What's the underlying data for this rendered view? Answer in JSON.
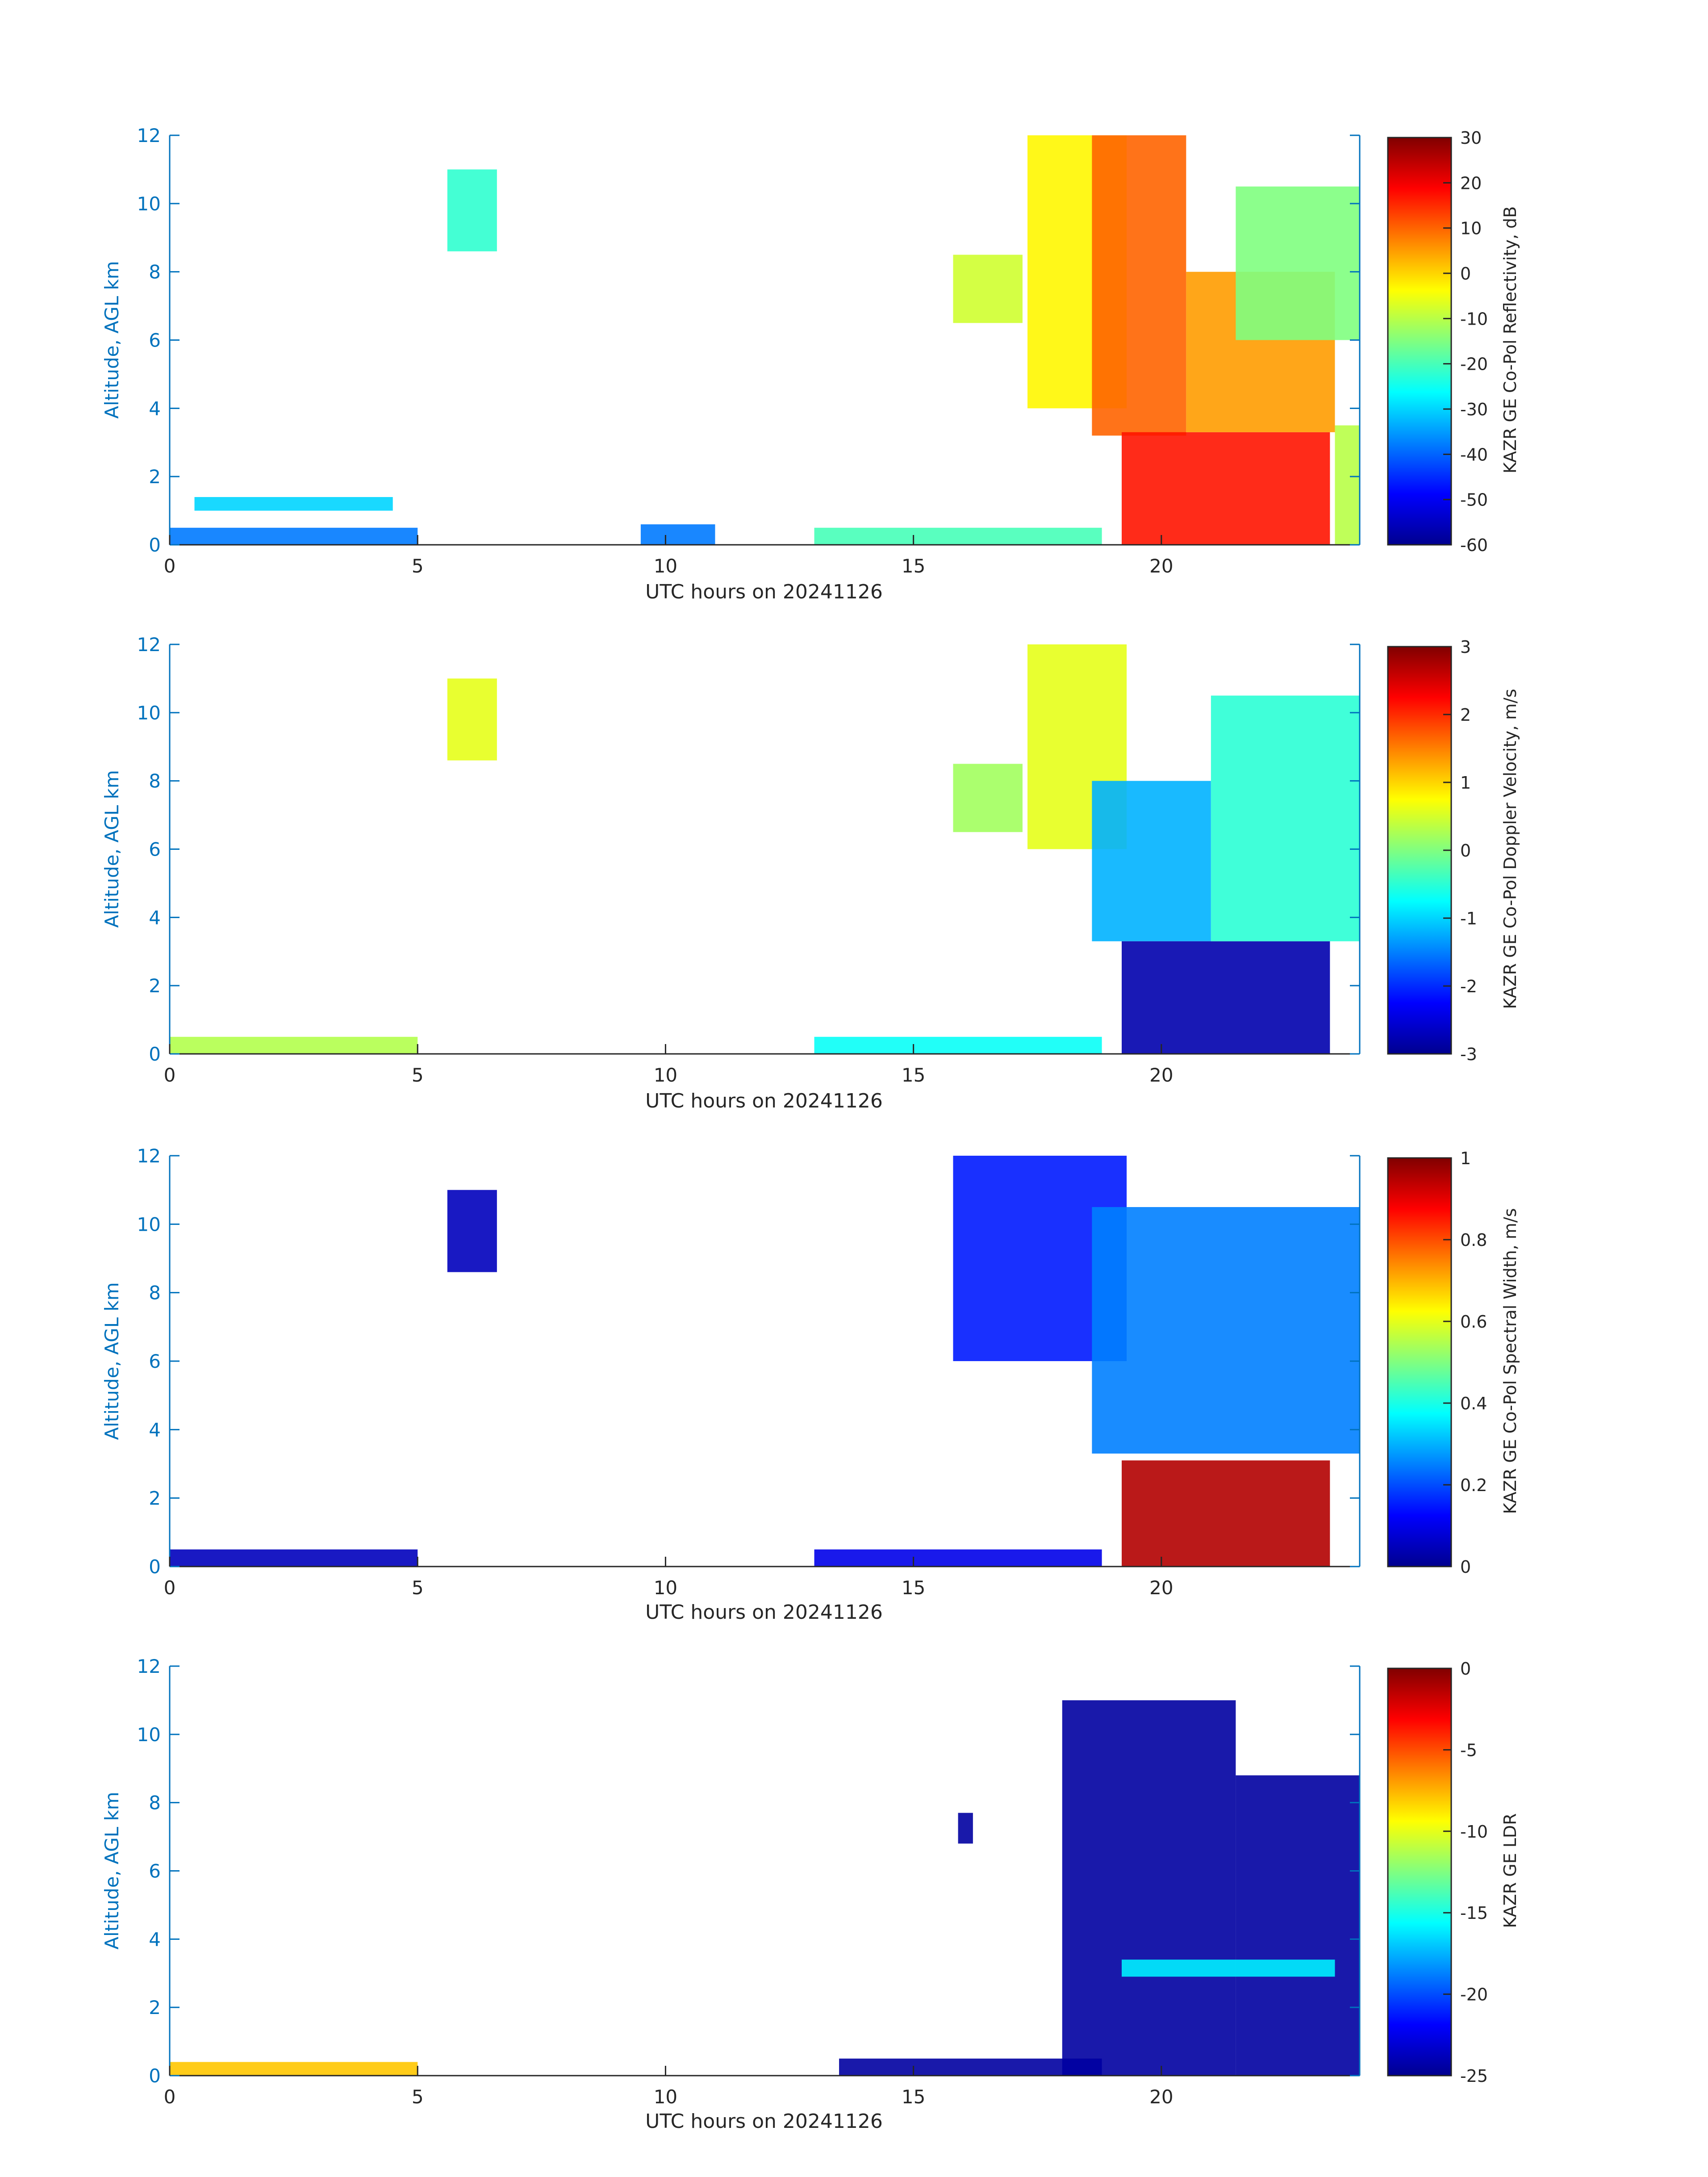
{
  "figure": {
    "background": "#ffffff",
    "axis_color": "#0072bd"
  },
  "chart_data": [
    {
      "type": "heatmap",
      "title": "",
      "xlabel": "UTC hours on 20241126",
      "ylabel": "Altitude, AGL km",
      "xlim": [
        0,
        24
      ],
      "ylim": [
        0,
        12
      ],
      "xticks": [
        0,
        5,
        10,
        15,
        20
      ],
      "yticks": [
        0,
        2,
        4,
        6,
        8,
        10,
        12
      ],
      "colorbar": {
        "label": "KAZR GE Co-Pol Reflectivity, dB",
        "range": [
          -60,
          30
        ],
        "ticks": [
          30,
          20,
          10,
          0,
          -10,
          -20,
          -30,
          -40,
          -50,
          -60
        ],
        "colormap": "jet"
      },
      "regions": [
        {
          "x": [
            0,
            5
          ],
          "y": [
            0,
            0.5
          ],
          "value": -38
        },
        {
          "x": [
            0.5,
            4.5
          ],
          "y": [
            1.0,
            1.4
          ],
          "value": -30
        },
        {
          "x": [
            5.6,
            6.6
          ],
          "y": [
            8.6,
            11.0
          ],
          "value": -22
        },
        {
          "x": [
            9.5,
            11.0
          ],
          "y": [
            0,
            0.6
          ],
          "value": -38
        },
        {
          "x": [
            13,
            18.8
          ],
          "y": [
            0,
            0.5
          ],
          "value": -20
        },
        {
          "x": [
            15.8,
            17.2
          ],
          "y": [
            6.5,
            8.5
          ],
          "value": -8
        },
        {
          "x": [
            17.3,
            19.3
          ],
          "y": [
            4.0,
            12.0
          ],
          "value": -3
        },
        {
          "x": [
            18.6,
            20.5
          ],
          "y": [
            3.2,
            12.0
          ],
          "value": 10
        },
        {
          "x": [
            19.2,
            23.4
          ],
          "y": [
            0,
            3.3
          ],
          "value": 17
        },
        {
          "x": [
            20.5,
            23.5
          ],
          "y": [
            3.3,
            8.0
          ],
          "value": 5
        },
        {
          "x": [
            21.5,
            24
          ],
          "y": [
            6.0,
            10.5
          ],
          "value": -15
        },
        {
          "x": [
            23.5,
            24
          ],
          "y": [
            0,
            3.5
          ],
          "value": -10
        }
      ]
    },
    {
      "type": "heatmap",
      "title": "",
      "xlabel": "UTC hours on 20241126",
      "ylabel": "Altitude, AGL km",
      "xlim": [
        0,
        24
      ],
      "ylim": [
        0,
        12
      ],
      "xticks": [
        0,
        5,
        10,
        15,
        20
      ],
      "yticks": [
        0,
        2,
        4,
        6,
        8,
        10,
        12
      ],
      "colorbar": {
        "label": "KAZR GE Co-Pol Doppler Velocity, m/s",
        "range": [
          -3,
          3
        ],
        "ticks": [
          3,
          2,
          1,
          0,
          -1,
          -2,
          -3
        ],
        "colormap": "jet"
      },
      "regions": [
        {
          "x": [
            0,
            5
          ],
          "y": [
            0,
            0.5
          ],
          "value": 0.3
        },
        {
          "x": [
            5.6,
            6.6
          ],
          "y": [
            8.6,
            11.0
          ],
          "value": 0.6
        },
        {
          "x": [
            13,
            18.8
          ],
          "y": [
            0,
            0.5
          ],
          "value": -0.7
        },
        {
          "x": [
            15.8,
            17.2
          ],
          "y": [
            6.5,
            8.5
          ],
          "value": 0.2
        },
        {
          "x": [
            17.3,
            19.3
          ],
          "y": [
            6.0,
            12.0
          ],
          "value": 0.6
        },
        {
          "x": [
            18.6,
            21.0
          ],
          "y": [
            3.3,
            8.0
          ],
          "value": -1.2
        },
        {
          "x": [
            19.2,
            23.4
          ],
          "y": [
            0,
            3.3
          ],
          "value": -2.8
        },
        {
          "x": [
            21.0,
            24
          ],
          "y": [
            3.3,
            10.5
          ],
          "value": -0.5
        }
      ]
    },
    {
      "type": "heatmap",
      "title": "",
      "xlabel": "UTC hours on 20241126",
      "ylabel": "Altitude, AGL km",
      "xlim": [
        0,
        24
      ],
      "ylim": [
        0,
        12
      ],
      "xticks": [
        0,
        5,
        10,
        15,
        20
      ],
      "yticks": [
        0,
        2,
        4,
        6,
        8,
        10,
        12
      ],
      "colorbar": {
        "label": "KAZR GE Co-Pol Spectral Width, m/s",
        "range": [
          0,
          1
        ],
        "ticks": [
          1,
          0.8,
          0.6,
          0.4,
          0.2,
          0
        ],
        "colormap": "jet"
      },
      "regions": [
        {
          "x": [
            0,
            5
          ],
          "y": [
            0,
            0.5
          ],
          "value": 0.05
        },
        {
          "x": [
            5.6,
            6.6
          ],
          "y": [
            8.6,
            11.0
          ],
          "value": 0.05
        },
        {
          "x": [
            13,
            18.8
          ],
          "y": [
            0,
            0.5
          ],
          "value": 0.1
        },
        {
          "x": [
            15.8,
            19.3
          ],
          "y": [
            6.0,
            12.0
          ],
          "value": 0.15
        },
        {
          "x": [
            18.6,
            24
          ],
          "y": [
            3.3,
            10.5
          ],
          "value": 0.25
        },
        {
          "x": [
            19.2,
            23.4
          ],
          "y": [
            0,
            3.1
          ],
          "value": 0.95
        }
      ]
    },
    {
      "type": "heatmap",
      "title": "",
      "xlabel": "UTC hours on 20241126",
      "ylabel": "Altitude, AGL km",
      "xlim": [
        0,
        24
      ],
      "ylim": [
        0,
        12
      ],
      "xticks": [
        0,
        5,
        10,
        15,
        20
      ],
      "yticks": [
        0,
        2,
        4,
        6,
        8,
        10,
        12
      ],
      "colorbar": {
        "label": "KAZR GE LDR",
        "range": [
          -25,
          0
        ],
        "ticks": [
          0,
          -5,
          -10,
          -15,
          -20,
          -25
        ],
        "colormap": "jet"
      },
      "regions": [
        {
          "x": [
            0,
            5
          ],
          "y": [
            0,
            0.4
          ],
          "value": -8
        },
        {
          "x": [
            13.5,
            18.8
          ],
          "y": [
            0,
            0.5
          ],
          "value": -24.5
        },
        {
          "x": [
            15.9,
            16.2
          ],
          "y": [
            6.8,
            7.7
          ],
          "value": -24.5
        },
        {
          "x": [
            18.0,
            21.5
          ],
          "y": [
            0,
            11.0
          ],
          "value": -24.5
        },
        {
          "x": [
            21.5,
            24
          ],
          "y": [
            0,
            8.8
          ],
          "value": -24.5
        },
        {
          "x": [
            19.2,
            23.5
          ],
          "y": [
            2.9,
            3.4
          ],
          "value": -16
        }
      ]
    }
  ]
}
